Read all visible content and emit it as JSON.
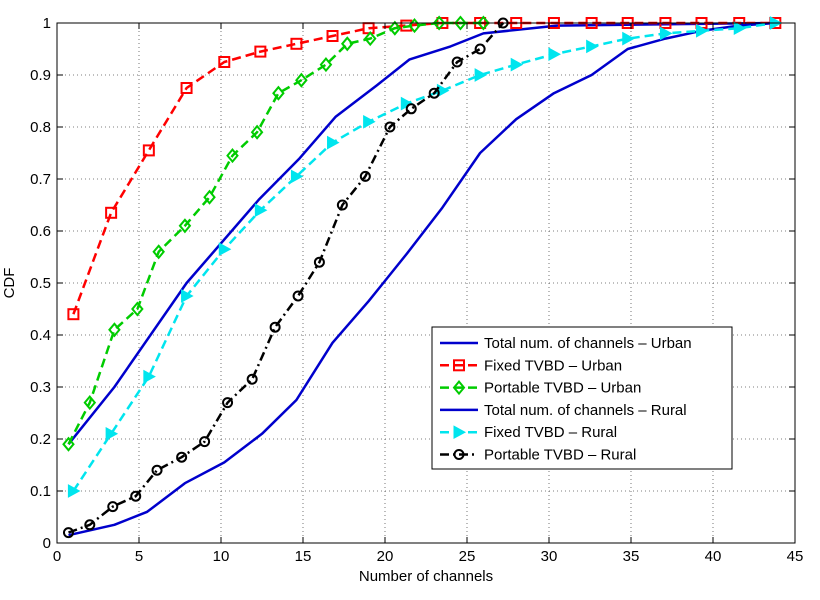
{
  "chart_data": {
    "type": "line",
    "title": "",
    "xlabel": "Number of channels",
    "ylabel": "CDF",
    "xlim": [
      0,
      45
    ],
    "ylim": [
      0,
      1
    ],
    "x_ticks": [
      "0",
      "5",
      "10",
      "15",
      "20",
      "25",
      "30",
      "35",
      "40",
      "45"
    ],
    "y_ticks": [
      "0",
      "0.1",
      "0.2",
      "0.3",
      "0.4",
      "0.5",
      "0.6",
      "0.7",
      "0.8",
      "0.9",
      "1"
    ],
    "grid": true,
    "legend_position": "lower-right",
    "series": [
      {
        "name": "Total num. of channels – Urban",
        "color": "#0000cc",
        "line_style": "solid",
        "marker": "none",
        "x": [
          0.7,
          3.5,
          7.9,
          12.3,
          14.8,
          17.0,
          19.5,
          21.5,
          24.0,
          26.0,
          30.5,
          44.0
        ],
        "y": [
          0.19,
          0.3,
          0.5,
          0.66,
          0.74,
          0.82,
          0.88,
          0.93,
          0.955,
          0.98,
          0.995,
          1.0
        ]
      },
      {
        "name": "Fixed TVBD – Urban",
        "color": "#ff0000",
        "line_style": "dashed",
        "marker": "square",
        "x": [
          1.0,
          3.3,
          5.6,
          7.9,
          10.2,
          12.4,
          14.6,
          16.8,
          19.0,
          21.3,
          23.5,
          25.8,
          28.0,
          30.3,
          32.6,
          34.8,
          37.1,
          39.3,
          41.6,
          43.8
        ],
        "y": [
          0.44,
          0.635,
          0.755,
          0.875,
          0.925,
          0.945,
          0.96,
          0.975,
          0.99,
          0.995,
          1.0,
          1.0,
          1.0,
          1.0,
          1.0,
          1.0,
          1.0,
          1.0,
          1.0,
          1.0
        ]
      },
      {
        "name": "Portable TVBD – Urban",
        "color": "#00cc00",
        "line_style": "dashed",
        "marker": "diamond",
        "x": [
          0.7,
          2.0,
          3.5,
          4.9,
          6.2,
          7.8,
          9.3,
          10.7,
          12.2,
          13.5,
          14.9,
          16.4,
          17.7,
          19.1,
          20.6,
          21.8,
          23.3,
          24.6,
          26.0
        ],
        "y": [
          0.19,
          0.27,
          0.41,
          0.45,
          0.56,
          0.61,
          0.665,
          0.745,
          0.79,
          0.865,
          0.89,
          0.92,
          0.96,
          0.97,
          0.99,
          0.995,
          1.0,
          1.0,
          1.0
        ]
      },
      {
        "name": "Total num. of channels – Rural",
        "color": "#0000cc",
        "line_style": "solid",
        "marker": "none",
        "x": [
          0.7,
          3.5,
          5.5,
          7.8,
          10.2,
          12.5,
          14.6,
          16.8,
          19.0,
          21.3,
          23.5,
          25.8,
          28.0,
          30.3,
          32.6,
          34.8,
          37.1,
          39.3,
          41.6,
          43.8
        ],
        "y": [
          0.015,
          0.035,
          0.06,
          0.115,
          0.155,
          0.21,
          0.275,
          0.385,
          0.465,
          0.555,
          0.645,
          0.75,
          0.815,
          0.865,
          0.9,
          0.95,
          0.97,
          0.985,
          0.995,
          1.0
        ]
      },
      {
        "name": "Fixed TVBD – Rural",
        "color": "#00e5ee",
        "line_style": "dashed",
        "marker": "triangle-right",
        "x": [
          1.0,
          3.3,
          5.6,
          7.9,
          10.2,
          12.4,
          14.6,
          16.8,
          19.0,
          21.3,
          23.5,
          25.8,
          28.0,
          30.3,
          32.6,
          34.8,
          37.1,
          39.3,
          41.6,
          43.8
        ],
        "y": [
          0.1,
          0.21,
          0.32,
          0.475,
          0.565,
          0.64,
          0.705,
          0.77,
          0.81,
          0.845,
          0.87,
          0.9,
          0.92,
          0.94,
          0.955,
          0.97,
          0.98,
          0.985,
          0.99,
          1.0
        ]
      },
      {
        "name": "Portable TVBD – Rural",
        "color": "#000000",
        "line_style": "dashdot",
        "marker": "circle",
        "x": [
          0.7,
          2.0,
          3.4,
          4.8,
          6.1,
          7.6,
          9.0,
          10.4,
          11.9,
          13.3,
          14.7,
          16.0,
          17.4,
          18.8,
          20.3,
          21.6,
          23.0,
          24.4,
          25.8,
          27.2
        ],
        "y": [
          0.02,
          0.035,
          0.07,
          0.09,
          0.14,
          0.165,
          0.195,
          0.27,
          0.315,
          0.415,
          0.475,
          0.54,
          0.65,
          0.705,
          0.8,
          0.835,
          0.865,
          0.925,
          0.95,
          1.0
        ]
      }
    ]
  }
}
